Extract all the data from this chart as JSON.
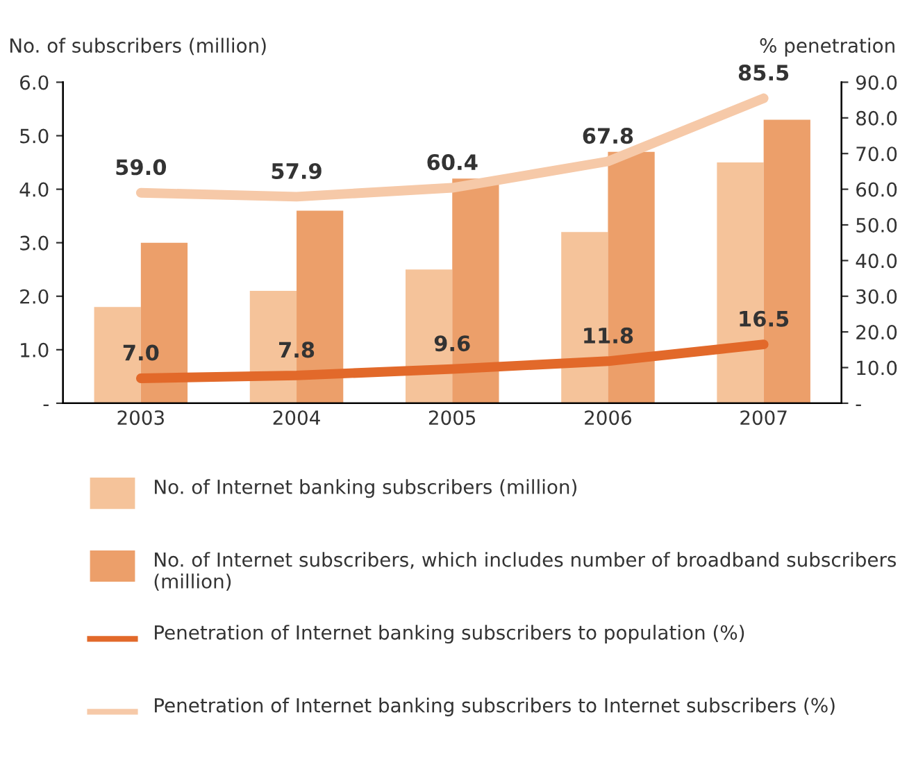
{
  "chart_data": {
    "type": "bar",
    "ylabel": "No. of subscribers (million)",
    "y2label": "% penetration",
    "categories": [
      "2003",
      "2004",
      "2005",
      "2006",
      "2007"
    ],
    "series": [
      {
        "name": "No. of Internet banking subscribers (million)",
        "color": "#f5c39a",
        "values": [
          1.8,
          2.1,
          2.5,
          3.2,
          4.5
        ]
      },
      {
        "name": "No. of Internet subscribers, which includes number of broadband subscribers (million)",
        "color": "#ec9f6a",
        "values": [
          3.0,
          3.6,
          4.2,
          4.7,
          5.3
        ]
      },
      {
        "name": "Penetration of Internet banking subscribers to population (%)",
        "type": "line",
        "axis": "y2",
        "color": "#e2692a",
        "values": [
          7.0,
          7.8,
          9.6,
          11.8,
          16.5
        ],
        "value_labels": [
          "7.0",
          "7.8",
          "9.6",
          "11.8",
          "16.5"
        ]
      },
      {
        "name": "Penetration of Internet banking subscribers to Internet subscribers (%)",
        "type": "line",
        "axis": "y2",
        "color": "#f6c9a8",
        "values": [
          59.0,
          57.9,
          60.4,
          67.8,
          85.5
        ],
        "value_labels": [
          "59.0",
          "57.9",
          "60.4",
          "67.8",
          "85.5"
        ]
      }
    ],
    "ylim": [
      0,
      6
    ],
    "yticks": [
      {
        "value": 0,
        "label": "-"
      },
      {
        "value": 1,
        "label": "1.0"
      },
      {
        "value": 2,
        "label": "2.0"
      },
      {
        "value": 3,
        "label": "3.0"
      },
      {
        "value": 4,
        "label": "4.0"
      },
      {
        "value": 5,
        "label": "5.0"
      },
      {
        "value": 6,
        "label": "6.0"
      }
    ],
    "y2lim": [
      0,
      90
    ],
    "y2ticks": [
      {
        "value": 0,
        "label": "-"
      },
      {
        "value": 10,
        "label": "10.0"
      },
      {
        "value": 20,
        "label": "20.0"
      },
      {
        "value": 30,
        "label": "30.0"
      },
      {
        "value": 40,
        "label": "40.0"
      },
      {
        "value": 50,
        "label": "50.0"
      },
      {
        "value": 60,
        "label": "60.0"
      },
      {
        "value": 70,
        "label": "70.0"
      },
      {
        "value": 80,
        "label": "80.0"
      },
      {
        "value": 90,
        "label": "90.0"
      }
    ],
    "legend": "bottom",
    "grid": false
  }
}
